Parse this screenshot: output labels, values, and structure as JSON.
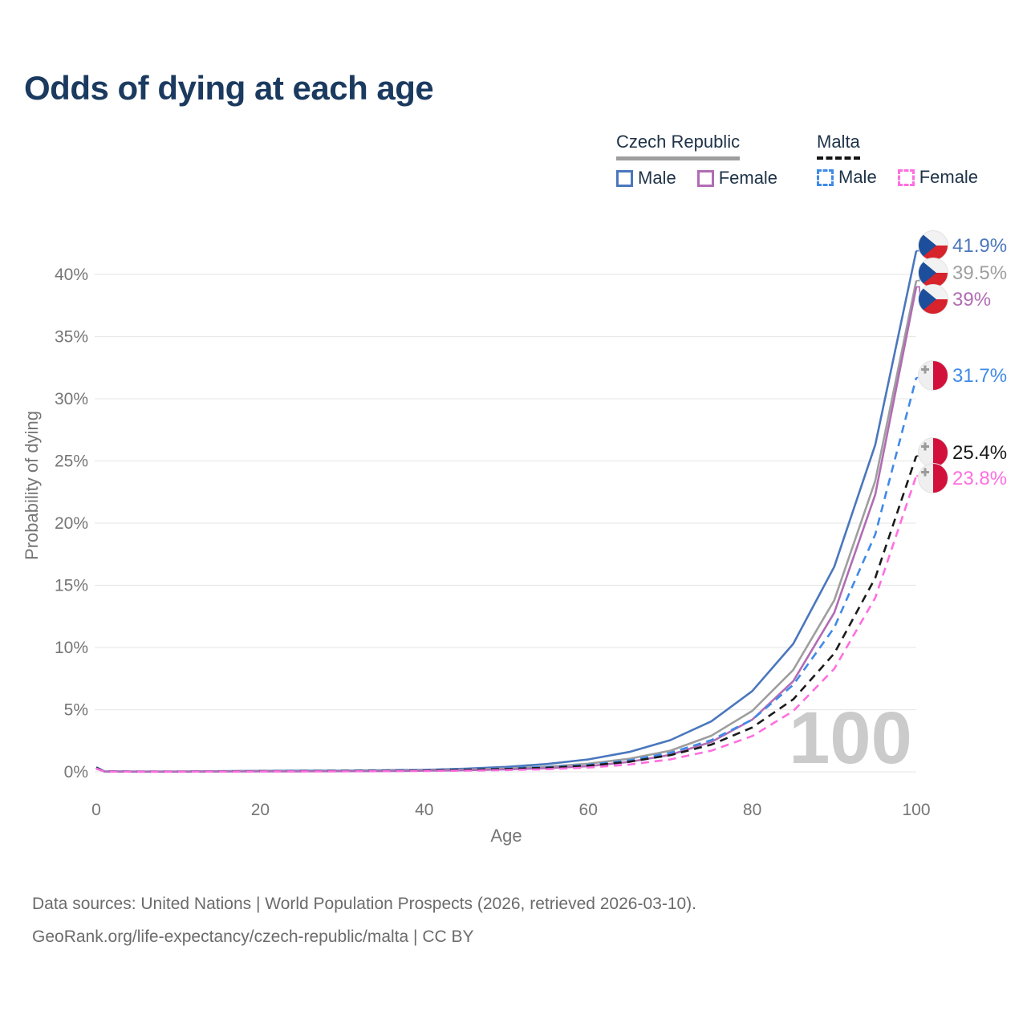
{
  "title": "Odds of dying at each age",
  "legend": {
    "groups": [
      {
        "title": "Czech Republic",
        "style": "solid",
        "items": [
          {
            "label": "Male",
            "series": "cz_male"
          },
          {
            "label": "Female",
            "series": "cz_female"
          }
        ]
      },
      {
        "title": "Malta",
        "style": "dashed",
        "items": [
          {
            "label": "Male",
            "series": "mt_male"
          },
          {
            "label": "Female",
            "series": "mt_female"
          }
        ]
      }
    ]
  },
  "axes": {
    "x": {
      "label": "Age",
      "ticks": [
        0,
        20,
        40,
        60,
        80,
        100
      ],
      "range": [
        0,
        100
      ]
    },
    "y": {
      "label": "Probability of dying",
      "ticks": [
        "0%",
        "5%",
        "10%",
        "15%",
        "20%",
        "25%",
        "30%",
        "35%",
        "40%"
      ],
      "tick_values": [
        0,
        5,
        10,
        15,
        20,
        25,
        30,
        35,
        40
      ],
      "range": [
        0,
        42.5
      ]
    }
  },
  "watermark": "100",
  "footer": {
    "line1": "Data sources: United Nations | World Population Prospects (2026, retrieved 2026-03-10).",
    "line2": "GeoRank.org/life-expectancy/czech-republic/malta | CC BY"
  },
  "chart_data": {
    "type": "line",
    "title": "Odds of dying at each age",
    "xlabel": "Age",
    "ylabel": "Probability of dying",
    "xlim": [
      0,
      100
    ],
    "ylim": [
      0,
      42.5
    ],
    "grid": "horizontal",
    "legend_position": "top-right",
    "series": [
      {
        "id": "cz_male",
        "name": "Czech Republic — Male",
        "color": "#4a77bd",
        "dash": "solid",
        "flag": "cz",
        "end_value": 41.9,
        "end_label": "41.9%",
        "points": [
          [
            0,
            0.31
          ],
          [
            1,
            0.04
          ],
          [
            5,
            0.02
          ],
          [
            10,
            0.02
          ],
          [
            15,
            0.05
          ],
          [
            20,
            0.08
          ],
          [
            25,
            0.09
          ],
          [
            30,
            0.1
          ],
          [
            35,
            0.12
          ],
          [
            40,
            0.16
          ],
          [
            45,
            0.25
          ],
          [
            50,
            0.4
          ],
          [
            55,
            0.63
          ],
          [
            60,
            1.0
          ],
          [
            65,
            1.6
          ],
          [
            70,
            2.55
          ],
          [
            75,
            4.06
          ],
          [
            80,
            6.5
          ],
          [
            85,
            10.3
          ],
          [
            90,
            16.5
          ],
          [
            95,
            26.3
          ],
          [
            100,
            41.9
          ]
        ]
      },
      {
        "id": "cz_both",
        "name": "Czech Republic — Both sexes",
        "color": "#9e9e9e",
        "dash": "solid",
        "flag": "cz",
        "end_value": 39.5,
        "end_label": "39.5%",
        "points": [
          [
            0,
            0.27
          ],
          [
            1,
            0.03
          ],
          [
            5,
            0.02
          ],
          [
            10,
            0.02
          ],
          [
            15,
            0.04
          ],
          [
            20,
            0.06
          ],
          [
            25,
            0.06
          ],
          [
            30,
            0.07
          ],
          [
            35,
            0.09
          ],
          [
            40,
            0.12
          ],
          [
            45,
            0.18
          ],
          [
            50,
            0.28
          ],
          [
            55,
            0.42
          ],
          [
            60,
            0.66
          ],
          [
            65,
            1.05
          ],
          [
            70,
            1.7
          ],
          [
            75,
            2.9
          ],
          [
            80,
            4.9
          ],
          [
            85,
            8.2
          ],
          [
            90,
            13.8
          ],
          [
            95,
            23.4
          ],
          [
            100,
            39.5
          ]
        ]
      },
      {
        "id": "cz_female",
        "name": "Czech Republic — Female",
        "color": "#b16cb4",
        "dash": "solid",
        "flag": "cz",
        "end_value": 39.0,
        "end_label": "39%",
        "points": [
          [
            0,
            0.25
          ],
          [
            1,
            0.03
          ],
          [
            5,
            0.01
          ],
          [
            10,
            0.01
          ],
          [
            15,
            0.03
          ],
          [
            20,
            0.04
          ],
          [
            25,
            0.04
          ],
          [
            30,
            0.05
          ],
          [
            35,
            0.06
          ],
          [
            40,
            0.09
          ],
          [
            45,
            0.13
          ],
          [
            50,
            0.2
          ],
          [
            55,
            0.3
          ],
          [
            60,
            0.46
          ],
          [
            65,
            0.8
          ],
          [
            70,
            1.37
          ],
          [
            75,
            2.4
          ],
          [
            80,
            4.2
          ],
          [
            85,
            7.3
          ],
          [
            90,
            12.8
          ],
          [
            95,
            22.3
          ],
          [
            100,
            39.0
          ]
        ]
      },
      {
        "id": "mt_male",
        "name": "Malta — Male",
        "color": "#3f8ae8",
        "dash": "dashed",
        "flag": "mt",
        "end_value": 31.7,
        "end_label": "31.7%",
        "points": [
          [
            0,
            0.38
          ],
          [
            1,
            0.03
          ],
          [
            5,
            0.02
          ],
          [
            10,
            0.02
          ],
          [
            15,
            0.04
          ],
          [
            20,
            0.06
          ],
          [
            25,
            0.07
          ],
          [
            30,
            0.08
          ],
          [
            35,
            0.1
          ],
          [
            40,
            0.13
          ],
          [
            45,
            0.19
          ],
          [
            50,
            0.28
          ],
          [
            55,
            0.39
          ],
          [
            60,
            0.57
          ],
          [
            65,
            0.93
          ],
          [
            70,
            1.53
          ],
          [
            75,
            2.55
          ],
          [
            80,
            4.2
          ],
          [
            85,
            7.0
          ],
          [
            90,
            11.6
          ],
          [
            95,
            19.1
          ],
          [
            100,
            31.7
          ]
        ]
      },
      {
        "id": "mt_both",
        "name": "Malta — Both sexes",
        "color": "#1a1a1a",
        "dash": "dashed",
        "flag": "mt",
        "end_value": 25.4,
        "end_label": "25.4%",
        "points": [
          [
            0,
            0.33
          ],
          [
            1,
            0.03
          ],
          [
            5,
            0.02
          ],
          [
            10,
            0.02
          ],
          [
            15,
            0.03
          ],
          [
            20,
            0.05
          ],
          [
            25,
            0.06
          ],
          [
            30,
            0.07
          ],
          [
            35,
            0.08
          ],
          [
            40,
            0.11
          ],
          [
            45,
            0.16
          ],
          [
            50,
            0.23
          ],
          [
            55,
            0.33
          ],
          [
            60,
            0.5
          ],
          [
            65,
            0.82
          ],
          [
            70,
            1.34
          ],
          [
            75,
            2.19
          ],
          [
            80,
            3.57
          ],
          [
            85,
            5.83
          ],
          [
            90,
            9.52
          ],
          [
            95,
            15.6
          ],
          [
            100,
            25.4
          ]
        ]
      },
      {
        "id": "mt_female",
        "name": "Malta — Female",
        "color": "#ff6ee0",
        "dash": "dashed",
        "flag": "mt",
        "end_value": 23.8,
        "end_label": "23.8%",
        "points": [
          [
            0,
            0.28
          ],
          [
            1,
            0.02
          ],
          [
            5,
            0.01
          ],
          [
            10,
            0.01
          ],
          [
            15,
            0.02
          ],
          [
            20,
            0.03
          ],
          [
            25,
            0.04
          ],
          [
            30,
            0.04
          ],
          [
            35,
            0.05
          ],
          [
            40,
            0.07
          ],
          [
            45,
            0.1
          ],
          [
            50,
            0.14
          ],
          [
            55,
            0.21
          ],
          [
            60,
            0.35
          ],
          [
            65,
            0.59
          ],
          [
            70,
            1.0
          ],
          [
            75,
            1.7
          ],
          [
            80,
            2.88
          ],
          [
            85,
            4.89
          ],
          [
            90,
            8.29
          ],
          [
            95,
            14.0
          ],
          [
            100,
            23.8
          ]
        ]
      }
    ]
  }
}
